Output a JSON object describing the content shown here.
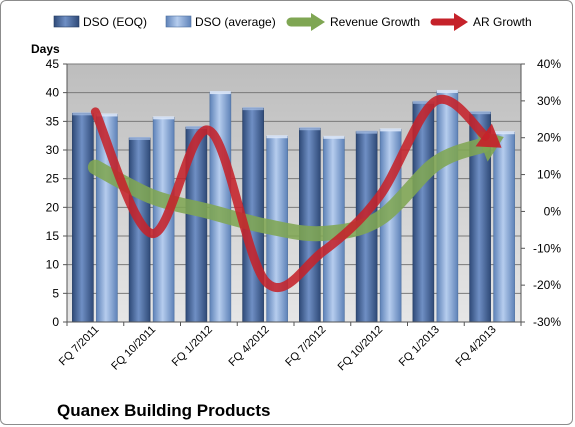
{
  "chart_data": {
    "type": "bar",
    "title": "Quanex Building Products",
    "ylabel": "Days",
    "y2label": "",
    "categories": [
      "FQ 7/2011",
      "FQ 10/2011",
      "FQ 1/2012",
      "FQ 4/2012",
      "FQ 7/2012",
      "FQ 10/2012",
      "FQ 1/2013",
      "FQ 4/2013"
    ],
    "ylim": [
      0,
      45
    ],
    "yticks": [
      0,
      5,
      10,
      15,
      20,
      25,
      30,
      35,
      40,
      45
    ],
    "y2lim": [
      -0.3,
      0.4
    ],
    "y2ticks": [
      -0.3,
      -0.2,
      -0.1,
      0.0,
      0.1,
      0.2,
      0.3,
      0.4
    ],
    "y2tick_labels": [
      "-30%",
      "-20%",
      "-10%",
      "0%",
      "10%",
      "20%",
      "30%",
      "40%"
    ],
    "series": [
      {
        "name": "DSO (EOQ)",
        "kind": "bar",
        "axis": "left",
        "color": "#4e6fa6",
        "values": [
          36.4,
          32.1,
          34.0,
          37.3,
          33.8,
          33.2,
          38.4,
          36.6
        ]
      },
      {
        "name": "DSO (average)",
        "kind": "bar",
        "axis": "left",
        "color": "#8eb0db",
        "values": [
          36.2,
          35.7,
          40.1,
          32.4,
          32.3,
          33.6,
          40.3,
          33.1
        ]
      },
      {
        "name": "Revenue Growth",
        "kind": "line",
        "axis": "right",
        "color": "#7fa653",
        "values": [
          0.12,
          0.04,
          0.0,
          -0.04,
          -0.06,
          -0.02,
          0.13,
          0.19
        ]
      },
      {
        "name": "AR Growth",
        "kind": "line",
        "axis": "right",
        "color": "#c5222a",
        "values": [
          0.27,
          -0.06,
          0.22,
          -0.19,
          -0.11,
          0.04,
          0.3,
          0.19
        ]
      }
    ],
    "grid": true,
    "legend": "top"
  }
}
